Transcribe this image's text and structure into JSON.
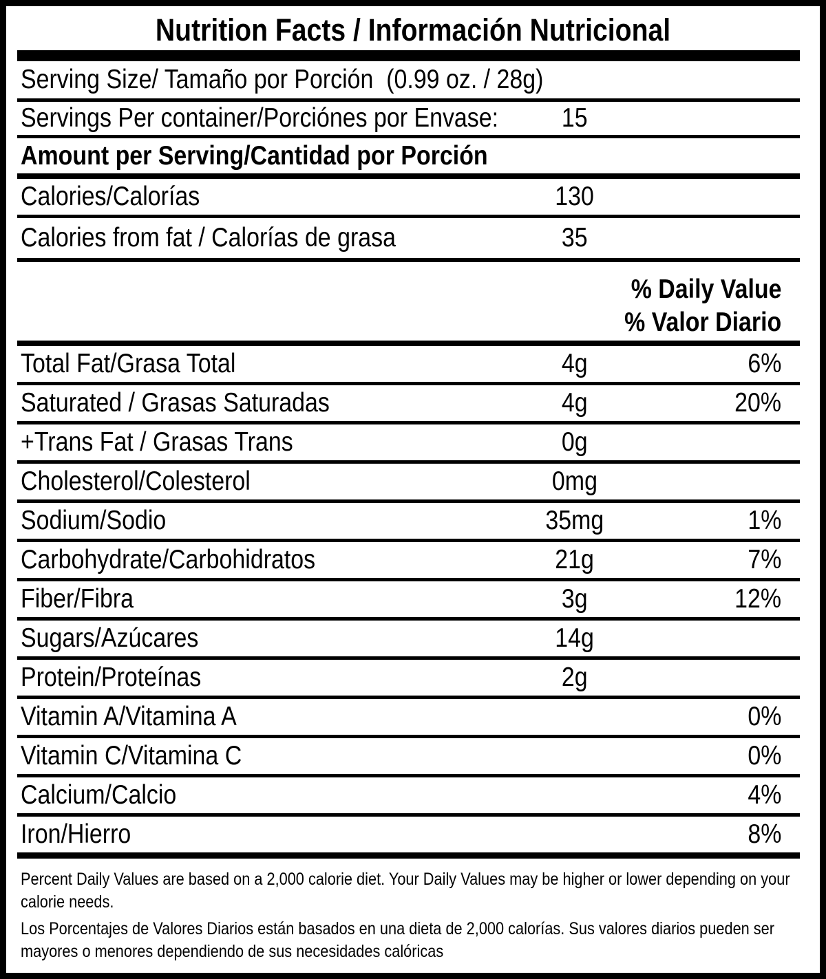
{
  "title": "Nutrition Facts / Información Nutricional",
  "serving": {
    "label": "Serving Size/ Tamaño por Porción  (0.99 oz. / 28g)"
  },
  "servings_per_container": {
    "label": "Servings Per container/Porciónes por Envase:",
    "value": "15"
  },
  "amount_header": "Amount per Serving/Cantidad por Porción",
  "calories": {
    "label": "Calories/Calorías",
    "value": "130"
  },
  "calories_from_fat": {
    "label": "Calories from fat / Calorías de grasa",
    "value": "35"
  },
  "daily_value_header": {
    "line1": "% Daily Value",
    "line2": "% Valor Diario"
  },
  "nutrients": [
    {
      "label": "Total Fat/Grasa Total",
      "amount": "4g",
      "dv": "6%"
    },
    {
      "label": "Saturated / Grasas Saturadas",
      "amount": "4g",
      "dv": "20%"
    },
    {
      "label": "+Trans Fat / Grasas Trans",
      "amount": "0g",
      "dv": ""
    },
    {
      "label": "Cholesterol/Colesterol",
      "amount": "0mg",
      "dv": ""
    },
    {
      "label": "Sodium/Sodio",
      "amount": "35mg",
      "dv": "1%"
    },
    {
      "label": "Carbohydrate/Carbohidratos",
      "amount": "21g",
      "dv": "7%"
    },
    {
      "label": "Fiber/Fibra",
      "amount": "3g",
      "dv": "12%"
    },
    {
      "label": "Sugars/Azúcares",
      "amount": "14g",
      "dv": ""
    },
    {
      "label": "Protein/Proteínas",
      "amount": "2g",
      "dv": ""
    },
    {
      "label": "Vitamin A/Vitamina A",
      "amount": "",
      "dv": "0%"
    },
    {
      "label": "Vitamin C/Vitamina C",
      "amount": "",
      "dv": "0%"
    },
    {
      "label": "Calcium/Calcio",
      "amount": "",
      "dv": "4%"
    },
    {
      "label": "Iron/Hierro",
      "amount": "",
      "dv": "8%"
    }
  ],
  "footnotes": {
    "en": "Percent Daily Values are based on a 2,000 calorie diet. Your Daily Values may be higher or lower depending on your calorie needs.",
    "es": "Los Porcentajes de Valores Diarios están basados en una dieta de 2,000 calorías. Sus valores diarios pueden ser mayores o menores dependiendo de sus necesidades calóricas"
  },
  "colors": {
    "ink": "#000000",
    "paper": "#ffffff"
  }
}
